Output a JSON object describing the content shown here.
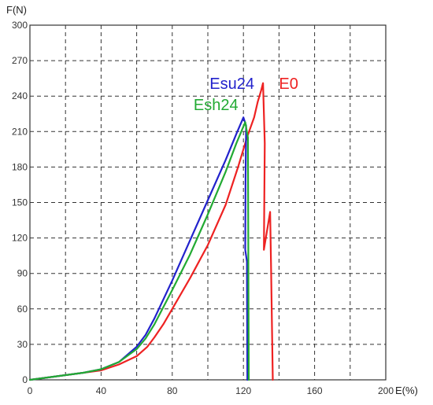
{
  "chart_data": {
    "type": "line",
    "title": "",
    "xlabel": "E(%)",
    "ylabel": "F(N)",
    "xlim": [
      0,
      200
    ],
    "ylim": [
      0,
      300
    ],
    "x_ticks": [
      0,
      40,
      80,
      120,
      160,
      200
    ],
    "y_ticks": [
      0,
      30,
      60,
      90,
      120,
      150,
      180,
      210,
      240,
      270,
      300
    ],
    "grid": true,
    "legend": "inline labels near curve peaks",
    "series": [
      {
        "name": "E0",
        "color": "#ee2222",
        "label_at": [
          140,
          246
        ],
        "points": [
          [
            0,
            0
          ],
          [
            10,
            2
          ],
          [
            20,
            4
          ],
          [
            30,
            6
          ],
          [
            40,
            8
          ],
          [
            50,
            13
          ],
          [
            60,
            20
          ],
          [
            66,
            28
          ],
          [
            70,
            36
          ],
          [
            75,
            47
          ],
          [
            80,
            60
          ],
          [
            90,
            86
          ],
          [
            100,
            114
          ],
          [
            110,
            148
          ],
          [
            117,
            180
          ],
          [
            122,
            205
          ],
          [
            126,
            222
          ],
          [
            128,
            235
          ],
          [
            130,
            245
          ],
          [
            131,
            251
          ],
          [
            132,
            200
          ],
          [
            131.5,
            110
          ],
          [
            135,
            142
          ],
          [
            135.5,
            100
          ],
          [
            136.5,
            0
          ]
        ]
      },
      {
        "name": "Esu24",
        "color": "#2222cc",
        "label_at": [
          101,
          246
        ],
        "points": [
          [
            0,
            0
          ],
          [
            10,
            2
          ],
          [
            20,
            4
          ],
          [
            30,
            6
          ],
          [
            40,
            9
          ],
          [
            50,
            15
          ],
          [
            60,
            28
          ],
          [
            65,
            38
          ],
          [
            70,
            52
          ],
          [
            80,
            84
          ],
          [
            90,
            118
          ],
          [
            100,
            152
          ],
          [
            110,
            186
          ],
          [
            116,
            208
          ],
          [
            120,
            222
          ],
          [
            121.5,
            215
          ],
          [
            121.2,
            170
          ],
          [
            121,
            110
          ],
          [
            122,
            100
          ],
          [
            122,
            90
          ],
          [
            122.2,
            0
          ]
        ]
      },
      {
        "name": "Esh24",
        "color": "#22aa33",
        "label_at": [
          92,
          228
        ],
        "points": [
          [
            0,
            0
          ],
          [
            10,
            2
          ],
          [
            20,
            4
          ],
          [
            30,
            6
          ],
          [
            40,
            9
          ],
          [
            50,
            15
          ],
          [
            60,
            26
          ],
          [
            65,
            35
          ],
          [
            70,
            47
          ],
          [
            80,
            76
          ],
          [
            90,
            106
          ],
          [
            100,
            140
          ],
          [
            110,
            176
          ],
          [
            116,
            200
          ],
          [
            121,
            218
          ],
          [
            122.5,
            205
          ],
          [
            123,
            0
          ]
        ]
      }
    ]
  }
}
